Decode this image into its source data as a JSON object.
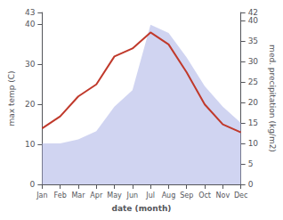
{
  "chart_data": {
    "type": "line",
    "xlabel": "date (month)",
    "ylabel": "max temp (C)",
    "y2label": "med. precipitation (kg/m2)",
    "categories": [
      "Jan",
      "Feb",
      "Mar",
      "Apr",
      "May",
      "Jun",
      "Jul",
      "Aug",
      "Sep",
      "Oct",
      "Nov",
      "Dec"
    ],
    "series": [
      {
        "type": "area",
        "color": "#b0b8e8",
        "axis": "y2",
        "values": [
          10,
          10,
          11,
          13,
          19,
          23,
          39,
          37,
          31,
          24,
          19,
          15
        ]
      },
      {
        "type": "line",
        "color": "#c0392b",
        "values": [
          14,
          17,
          22,
          25,
          32,
          34,
          38,
          35,
          28,
          20,
          15,
          13
        ]
      }
    ],
    "ylim": [
      0,
      43
    ],
    "yticks": [
      0,
      10,
      20,
      30,
      40
    ],
    "y2lim": [
      0,
      42
    ],
    "y2ticks": [
      0,
      5,
      10,
      15,
      20,
      25,
      30,
      35,
      40
    ],
    "grid": false
  }
}
